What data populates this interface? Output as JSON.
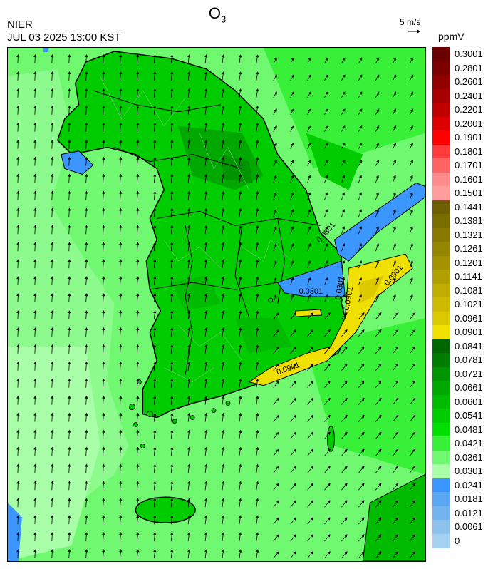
{
  "header": {
    "title": "O",
    "title_sub": "3",
    "agency": "NIER",
    "timestamp": "JUL 03 2025 13:00 KST",
    "vector_label": "5 m/s",
    "unit": "ppmV"
  },
  "map": {
    "contour_labels": [
      "0.0901",
      "0.0901",
      "0.0901",
      "0.0301",
      "0.0301",
      "0.0301"
    ]
  },
  "legend": {
    "ticks": [
      "0.3001",
      "0.2801",
      "0.2601",
      "0.2401",
      "0.2201",
      "0.2001",
      "0.1901",
      "0.1801",
      "0.1701",
      "0.1601",
      "0.1501",
      "0.1441",
      "0.1381",
      "0.1321",
      "0.1261",
      "0.1201",
      "0.1141",
      "0.1081",
      "0.1021",
      "0.0961",
      "0.0901",
      "0.0841",
      "0.0781",
      "0.0721",
      "0.0661",
      "0.0601",
      "0.0541",
      "0.0481",
      "0.0421",
      "0.0361",
      "0.0301",
      "0.0241",
      "0.0181",
      "0.0121",
      "0.0061",
      "0"
    ],
    "colors": [
      "#6a0000",
      "#7c0000",
      "#900000",
      "#a80000",
      "#c00000",
      "#dc0000",
      "#ff0000",
      "#ff3c3c",
      "#ff6464",
      "#ff8c8c",
      "#ff9c9c",
      "#6e6000",
      "#7a6d00",
      "#887800",
      "#968500",
      "#a49200",
      "#b29f00",
      "#c0ad00",
      "#cebb00",
      "#dcc900",
      "#f0e000",
      "#006600",
      "#007d00",
      "#009400",
      "#00a800",
      "#00bb00",
      "#00cc00",
      "#00e000",
      "#38f038",
      "#70f870",
      "#a8ffa8",
      "#3c96ff",
      "#5aa8f4",
      "#74b4ee",
      "#8cc2ec",
      "#a4d2f0"
    ]
  }
}
